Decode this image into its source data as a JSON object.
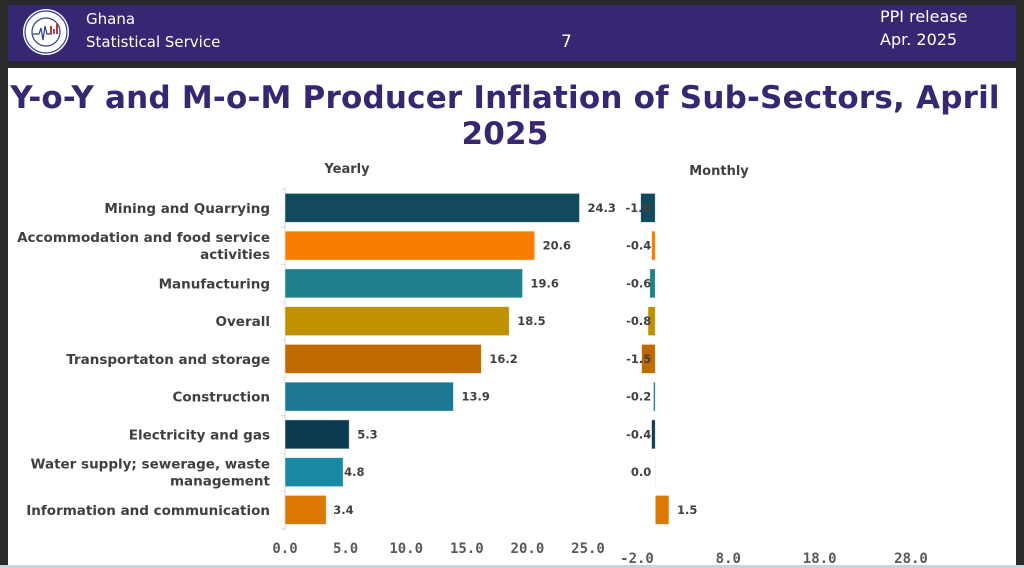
{
  "header": {
    "org_line1": "Ghana",
    "org_line2": "Statistical Service",
    "page_number": "7",
    "release_line1": "PPI release",
    "release_line2": "Apr. 2025",
    "logo_icon": "ghana-statistical-service-seal"
  },
  "colors": {
    "header_bg": "#372672",
    "title": "#372672"
  },
  "chart_data": {
    "type": "bar",
    "orientation": "horizontal",
    "title": "Y-o-Y and M-o-M Producer Inflation of Sub-Sectors, April 2025",
    "categories": [
      "Mining and Quarrying",
      "Accommodation and food service activities",
      "Manufacturing",
      "Overall",
      "Transportaton and storage",
      "Construction",
      "Electricity and gas",
      "Water supply; sewerage, waste management",
      "Information and communication"
    ],
    "category_label_lines": [
      [
        "Mining and Quarrying"
      ],
      [
        "Accommodation and food service",
        "activities"
      ],
      [
        "Manufacturing"
      ],
      [
        "Overall"
      ],
      [
        "Transportaton and storage"
      ],
      [
        "Construction"
      ],
      [
        "Electricity and gas"
      ],
      [
        "Water supply; sewerage, waste",
        "management"
      ],
      [
        "Information and communication"
      ]
    ],
    "bar_colors": [
      "#114a5e",
      "#f97d00",
      "#1f7f8c",
      "#bf9000",
      "#c06a00",
      "#1f7893",
      "#0d3c52",
      "#1a89a3",
      "#dc7700"
    ],
    "panels": [
      {
        "name": "Yearly",
        "values": [
          24.3,
          20.6,
          19.6,
          18.5,
          16.2,
          13.9,
          5.3,
          4.8,
          3.4
        ],
        "value_labels": [
          "24.3",
          "20.6",
          "19.6",
          "18.5",
          "16.2",
          "13.9",
          "5.3",
          "4.8",
          "3.4"
        ],
        "xlim": [
          0,
          25
        ],
        "ticks": [
          0,
          5,
          10,
          15,
          20,
          25
        ],
        "tick_labels": [
          "0.0",
          "5.0",
          "10.0",
          "15.0",
          "20.0",
          "25.0"
        ]
      },
      {
        "name": "Monthly",
        "values": [
          -1.6,
          -0.4,
          -0.6,
          -0.8,
          -1.5,
          -0.2,
          -0.4,
          0.0,
          1.5
        ],
        "value_labels": [
          "-1.6",
          "-0.4",
          "-0.6",
          "-0.8",
          "-1.5",
          "-0.2",
          "-0.4",
          "0.0",
          "1.5"
        ],
        "xlim": [
          -2,
          28
        ],
        "ticks": [
          -2,
          8,
          18,
          28
        ],
        "tick_labels": [
          "-2.0",
          "8.0",
          "18.0",
          "28.0"
        ]
      }
    ],
    "grid": false,
    "legend": "none"
  }
}
